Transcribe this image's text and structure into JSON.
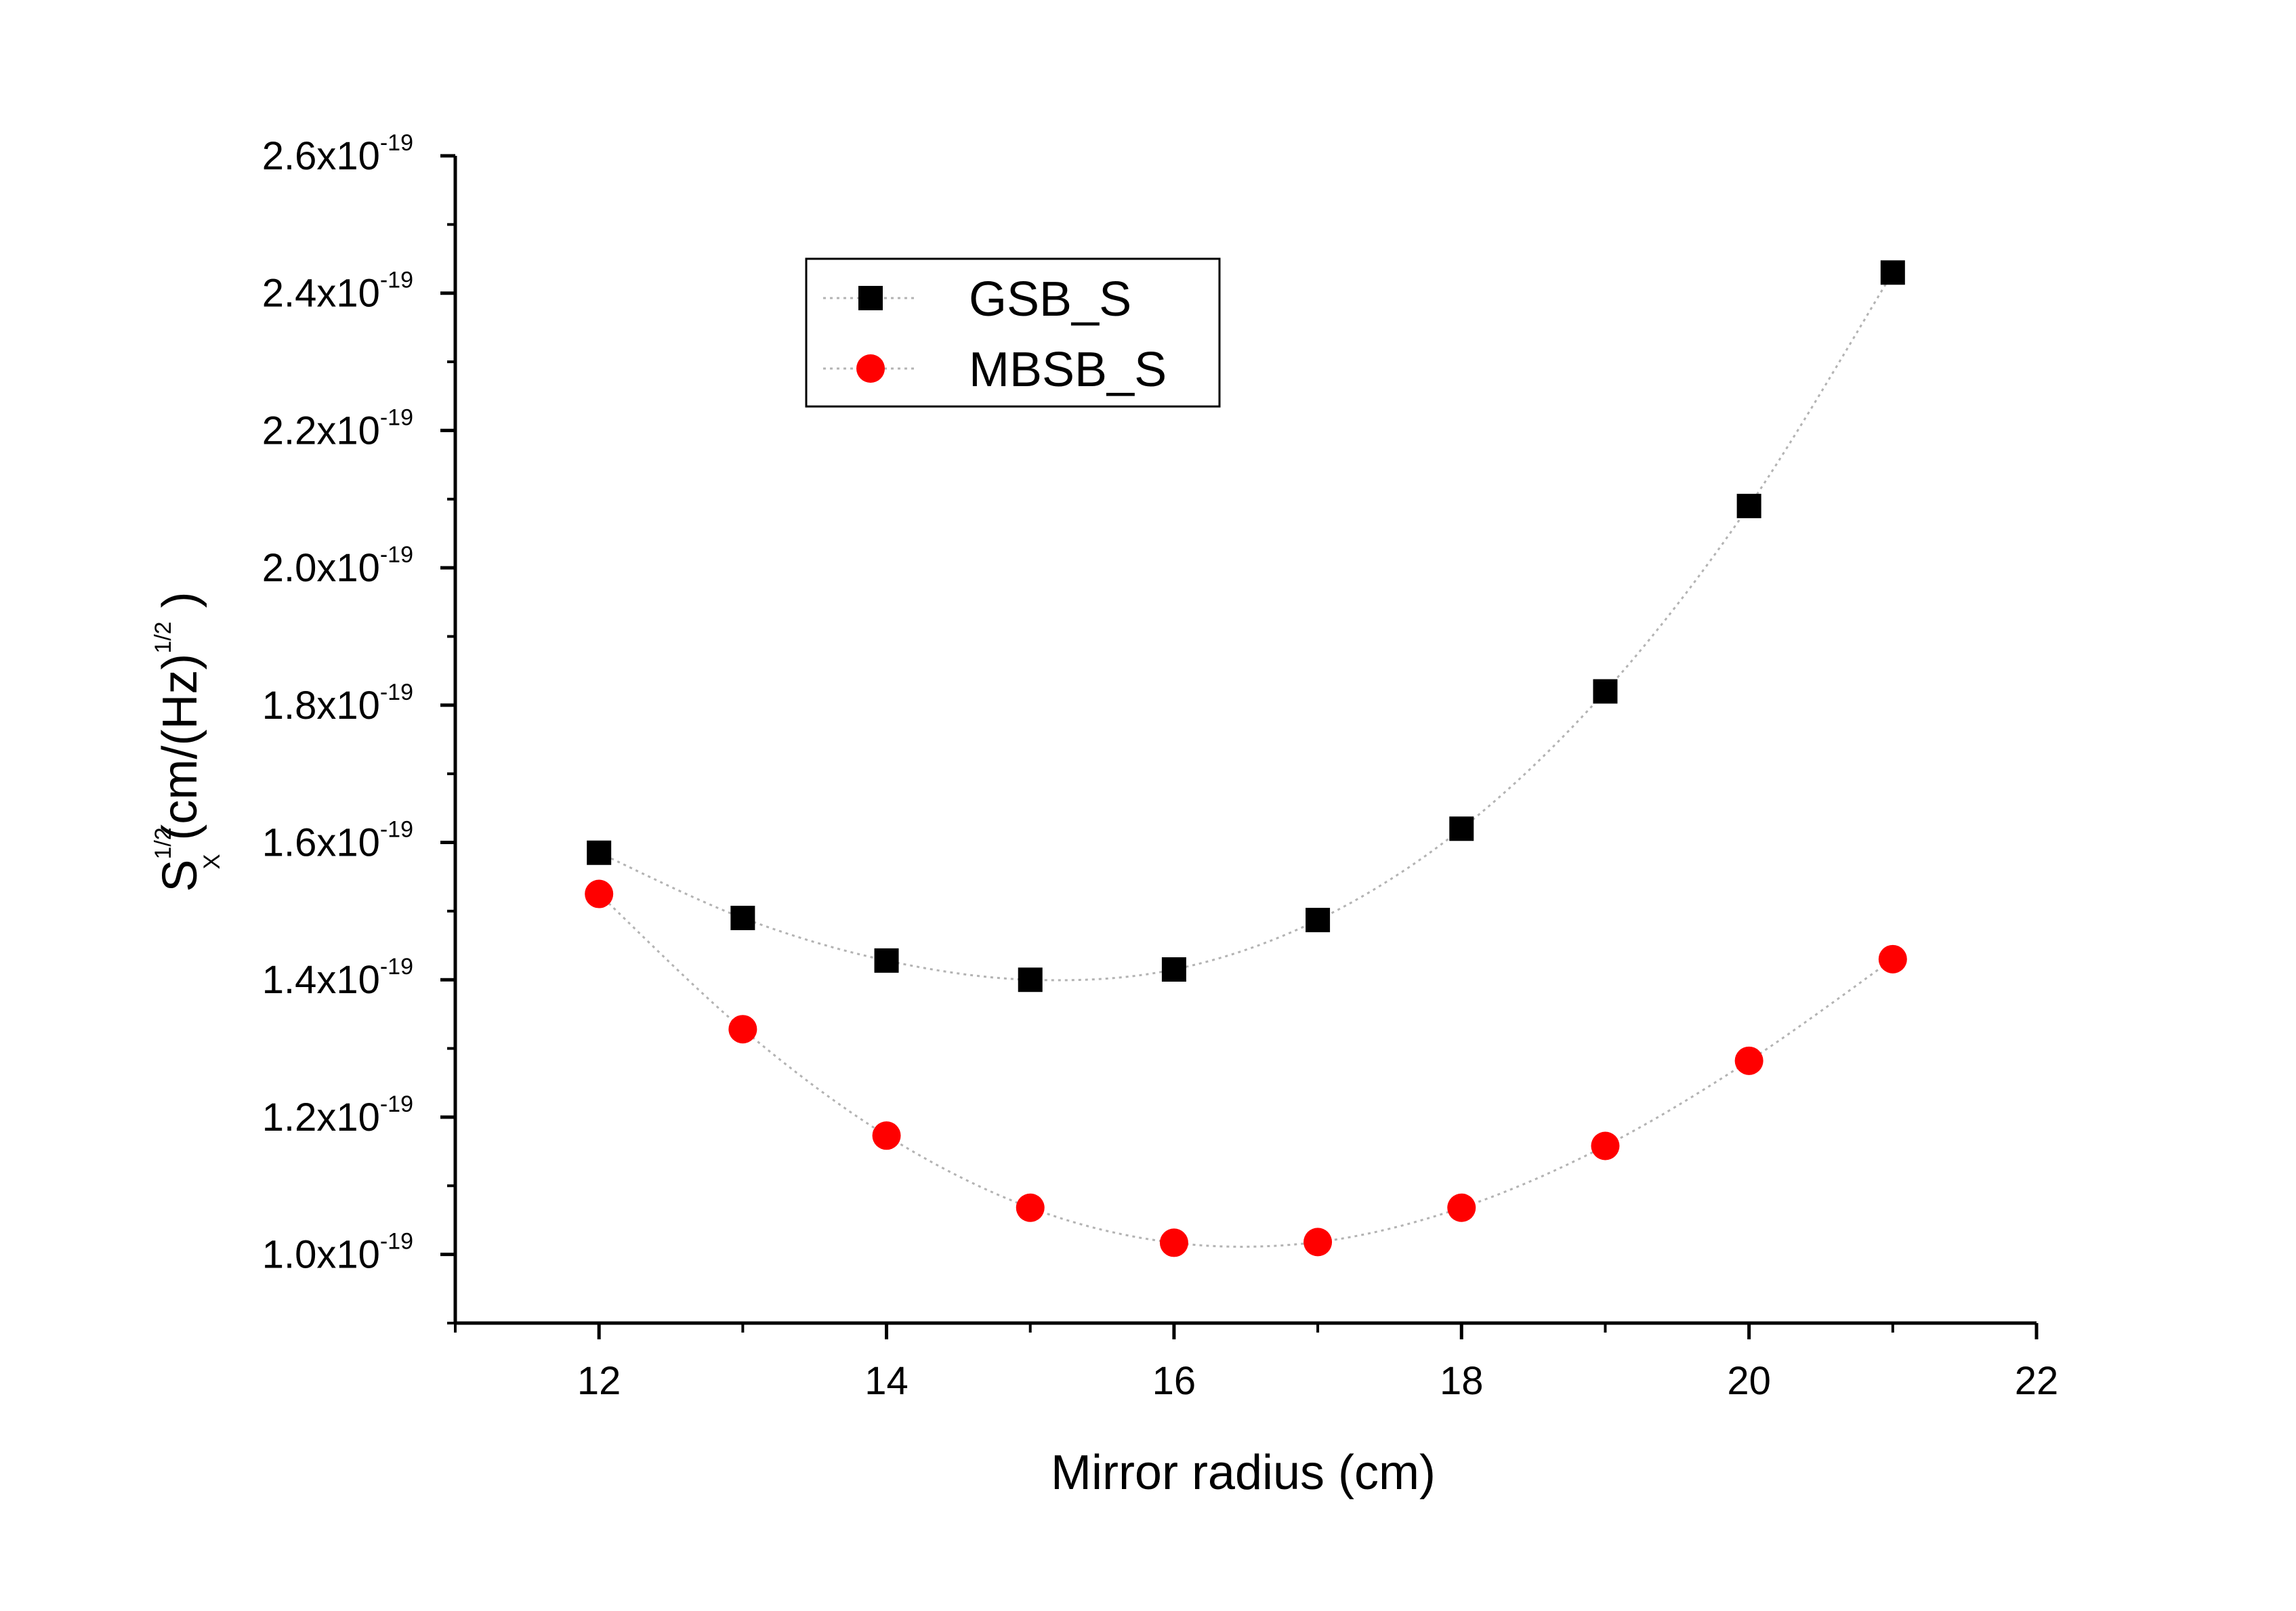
{
  "chart_data": {
    "type": "scatter",
    "xlabel": "Mirror radius (cm)",
    "ylabel": {
      "base": "S",
      "sup": "1/2",
      "sub": "X",
      "unit_open": " (cm/(Hz)",
      "unit_sup": "1/2",
      "unit_close": " )"
    },
    "xlim": [
      11,
      22
    ],
    "ylim": [
      9e-20,
      2.6e-19
    ],
    "x_ticks": [
      12,
      14,
      16,
      18,
      20,
      22
    ],
    "x_tick_labels": [
      "12",
      "14",
      "16",
      "18",
      "20",
      "22"
    ],
    "y_ticks": [
      1e-19,
      1.2e-19,
      1.4e-19,
      1.6e-19,
      1.8e-19,
      2e-19,
      2.2e-19,
      2.4e-19,
      2.6e-19
    ],
    "y_tick_labels": [
      {
        "mantissa": "1.0x10",
        "exponent": "-19"
      },
      {
        "mantissa": "1.2x10",
        "exponent": "-19"
      },
      {
        "mantissa": "1.4x10",
        "exponent": "-19"
      },
      {
        "mantissa": "1.6x10",
        "exponent": "-19"
      },
      {
        "mantissa": "1.8x10",
        "exponent": "-19"
      },
      {
        "mantissa": "2.0x10",
        "exponent": "-19"
      },
      {
        "mantissa": "2.2x10",
        "exponent": "-19"
      },
      {
        "mantissa": "2.4x10",
        "exponent": "-19"
      },
      {
        "mantissa": "2.6x10",
        "exponent": "-19"
      }
    ],
    "grid": false,
    "legend_position": "top-left",
    "x": [
      12,
      13,
      14,
      15,
      16,
      17,
      18,
      19,
      20,
      21
    ],
    "series": [
      {
        "name": "GSB_S",
        "marker": "square",
        "color": "#000000",
        "values": [
          1.585e-19,
          1.49e-19,
          1.428e-19,
          1.4e-19,
          1.415e-19,
          1.487e-19,
          1.62e-19,
          1.82e-19,
          2.09e-19,
          2.43e-19
        ]
      },
      {
        "name": "MBSB_S",
        "marker": "circle",
        "color": "#ff0000",
        "values": [
          1.525e-19,
          1.328e-19,
          1.173e-19,
          1.068e-19,
          1.017e-19,
          1.018e-19,
          1.068e-19,
          1.158e-19,
          1.282e-19,
          1.43e-19
        ]
      }
    ]
  }
}
